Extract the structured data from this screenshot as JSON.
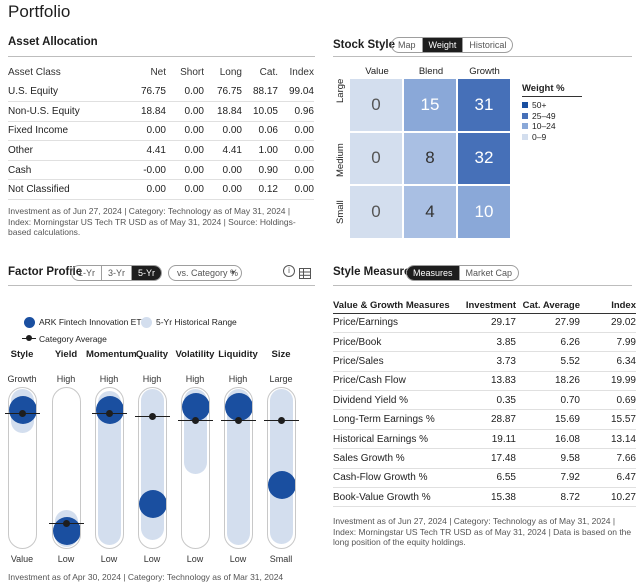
{
  "page": {
    "title": "Portfolio"
  },
  "asset_allocation": {
    "title": "Asset Allocation",
    "columns": [
      "Asset Class",
      "Net",
      "Short",
      "Long",
      "Cat.",
      "Index"
    ],
    "rows": [
      {
        "name": "U.S. Equity",
        "net": "76.75",
        "short": "0.00",
        "long": "76.75",
        "cat": "88.17",
        "index": "99.04"
      },
      {
        "name": "Non-U.S. Equity",
        "net": "18.84",
        "short": "0.00",
        "long": "18.84",
        "cat": "10.05",
        "index": "0.96"
      },
      {
        "name": "Fixed Income",
        "net": "0.00",
        "short": "0.00",
        "long": "0.00",
        "cat": "0.06",
        "index": "0.00"
      },
      {
        "name": "Other",
        "net": "4.41",
        "short": "0.00",
        "long": "4.41",
        "cat": "1.00",
        "index": "0.00"
      },
      {
        "name": "Cash",
        "net": "-0.00",
        "short": "0.00",
        "long": "0.00",
        "cat": "0.90",
        "index": "0.00"
      },
      {
        "name": "Not Classified",
        "net": "0.00",
        "short": "0.00",
        "long": "0.00",
        "cat": "0.12",
        "index": "0.00"
      }
    ],
    "note": "Investment as of Jun 27, 2024 | Category: Technology as of May 31, 2024 | Index: Morningstar US Tech TR USD as of May 31, 2024 | Source: Holdings-based calculations."
  },
  "stock_style": {
    "title": "Stock Style",
    "tabs": [
      "Map",
      "Weight",
      "Historical"
    ],
    "active_tab": "Weight",
    "col_labels": [
      "Value",
      "Blend",
      "Growth"
    ],
    "row_labels": [
      "Large",
      "Medium",
      "Small"
    ],
    "cells": [
      [
        "0",
        "15",
        "31"
      ],
      [
        "0",
        "8",
        "32"
      ],
      [
        "0",
        "4",
        "10"
      ]
    ],
    "cell_colors": [
      [
        "#d3deee",
        "#8aa8d8",
        "#4670b8"
      ],
      [
        "#d3deee",
        "#a9bfe3",
        "#4670b8"
      ],
      [
        "#d3deee",
        "#a9bfe3",
        "#8aa8d8"
      ]
    ],
    "legend_title": "Weight %",
    "legend": [
      {
        "label": "50+",
        "color": "#1a4fa0"
      },
      {
        "label": "25–49",
        "color": "#4670b8"
      },
      {
        "label": "10–24",
        "color": "#8aa8d8"
      },
      {
        "label": "0–9",
        "color": "#d3deee"
      }
    ]
  },
  "factor_profile": {
    "title": "Factor Profile",
    "tabs": [
      "1-Yr",
      "3-Yr",
      "5-Yr"
    ],
    "active_tab": "5-Yr",
    "compare_select": "vs. Category %",
    "legend_fund": "ARK Fintech Innovation ETF",
    "legend_range": "5-Yr Historical Range",
    "legend_category": "Category Average",
    "factors": [
      {
        "name": "Style",
        "top": "Growth",
        "bottom": "Value",
        "fund": 0.94,
        "cat": 0.91,
        "range": [
          0.86,
          0.99
        ]
      },
      {
        "name": "Yield",
        "top": "High",
        "bottom": "Low",
        "fund": 0.04,
        "cat": 0.09,
        "range": [
          0.01,
          0.09
        ]
      },
      {
        "name": "Momentum",
        "top": "High",
        "bottom": "Low",
        "fund": 0.94,
        "cat": 0.91,
        "range": [
          0.02,
          0.98
        ]
      },
      {
        "name": "Quality",
        "top": "High",
        "bottom": "Low",
        "fund": 0.24,
        "cat": 0.89,
        "range": [
          0.06,
          0.99
        ]
      },
      {
        "name": "Volatility",
        "top": "High",
        "bottom": "Low",
        "fund": 0.96,
        "cat": 0.86,
        "range": [
          0.55,
          0.99
        ]
      },
      {
        "name": "Liquidity",
        "top": "High",
        "bottom": "Low",
        "fund": 0.96,
        "cat": 0.86,
        "range": [
          0.02,
          0.99
        ]
      },
      {
        "name": "Size",
        "top": "Large",
        "bottom": "Small",
        "fund": 0.38,
        "cat": 0.86,
        "range": [
          0.03,
          0.99
        ]
      }
    ],
    "note": "Investment as of Apr 30, 2024 | Category: Technology as of Mar 31, 2024"
  },
  "style_measures": {
    "title": "Style Measures",
    "tabs": [
      "Measures",
      "Market Cap"
    ],
    "active_tab": "Measures",
    "columns": [
      "Value & Growth Measures",
      "Investment",
      "Cat. Average",
      "Index"
    ],
    "rows": [
      {
        "name": "Price/Earnings",
        "inv": "29.17",
        "cat": "27.99",
        "index": "29.02"
      },
      {
        "name": "Price/Book",
        "inv": "3.85",
        "cat": "6.26",
        "index": "7.99"
      },
      {
        "name": "Price/Sales",
        "inv": "3.73",
        "cat": "5.52",
        "index": "6.34"
      },
      {
        "name": "Price/Cash Flow",
        "inv": "13.83",
        "cat": "18.26",
        "index": "19.99"
      },
      {
        "name": "Dividend Yield %",
        "inv": "0.35",
        "cat": "0.70",
        "index": "0.69"
      },
      {
        "name": "Long-Term Earnings %",
        "inv": "28.87",
        "cat": "15.69",
        "index": "15.57"
      },
      {
        "name": "Historical Earnings %",
        "inv": "19.11",
        "cat": "16.08",
        "index": "13.14"
      },
      {
        "name": "Sales Growth %",
        "inv": "17.48",
        "cat": "9.58",
        "index": "7.66"
      },
      {
        "name": "Cash-Flow Growth %",
        "inv": "6.55",
        "cat": "7.92",
        "index": "6.47"
      },
      {
        "name": "Book-Value Growth %",
        "inv": "15.38",
        "cat": "8.72",
        "index": "10.27"
      }
    ],
    "note": "Investment as of Jun 27, 2024 | Category: Technology as of May 31, 2024 | Index: Morningstar US Tech TR USD as of May 31, 2024 | Data is based on the long position of the equity holdings."
  },
  "colors": {
    "fund": "#1a4fa0",
    "range": "#d3deee",
    "category": "#1e1e1e"
  }
}
